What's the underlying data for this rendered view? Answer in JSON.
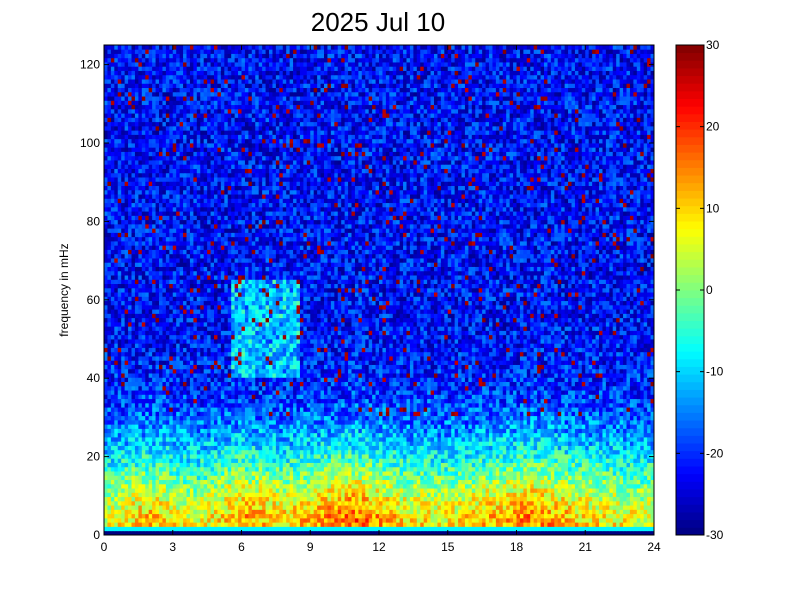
{
  "chart_data": {
    "type": "heatmap",
    "title": "2025 Jul 10",
    "xlabel": "",
    "ylabel": "frequency in mHz",
    "xlim": [
      0,
      24
    ],
    "ylim": [
      0,
      125
    ],
    "xticks": [
      0,
      3,
      6,
      9,
      12,
      15,
      18,
      21,
      24
    ],
    "xtick_labels": [
      "0",
      "3",
      "6",
      "9",
      "12",
      "15",
      "18",
      "21",
      "24"
    ],
    "yticks": [
      0,
      20,
      40,
      60,
      80,
      100,
      120
    ],
    "ytick_labels": [
      "0",
      "20",
      "40",
      "60",
      "80",
      "100",
      "120"
    ],
    "colormap": "jet",
    "clim": [
      -30,
      30
    ],
    "colorbar_ticks": [
      -30,
      -20,
      -10,
      0,
      10,
      20,
      30
    ],
    "colorbar_tick_labels": [
      "-30",
      "-20",
      "-10",
      "0",
      "10",
      "20",
      "30"
    ],
    "grid": false,
    "cells": {
      "time_bins": 160,
      "frequency_bins": 115
    },
    "intensity_profile": {
      "description_free": true,
      "background_level": -22,
      "low_frequency_band": [
        {
          "time": 0,
          "level": 6
        },
        {
          "time": 2,
          "level": 12
        },
        {
          "time": 4,
          "level": 6
        },
        {
          "time": 6,
          "level": 14
        },
        {
          "time": 8,
          "level": 10
        },
        {
          "time": 11,
          "level": 18
        },
        {
          "time": 13,
          "level": 10
        },
        {
          "time": 15,
          "level": 8
        },
        {
          "time": 18.5,
          "level": 16
        },
        {
          "time": 21,
          "level": 10
        },
        {
          "time": 24,
          "level": 6
        }
      ],
      "band_top_frequency_mHz": 25,
      "enhanced_region": {
        "time": [
          5.5,
          8.5
        ],
        "frequency": [
          40,
          65
        ],
        "level": -10
      }
    }
  }
}
